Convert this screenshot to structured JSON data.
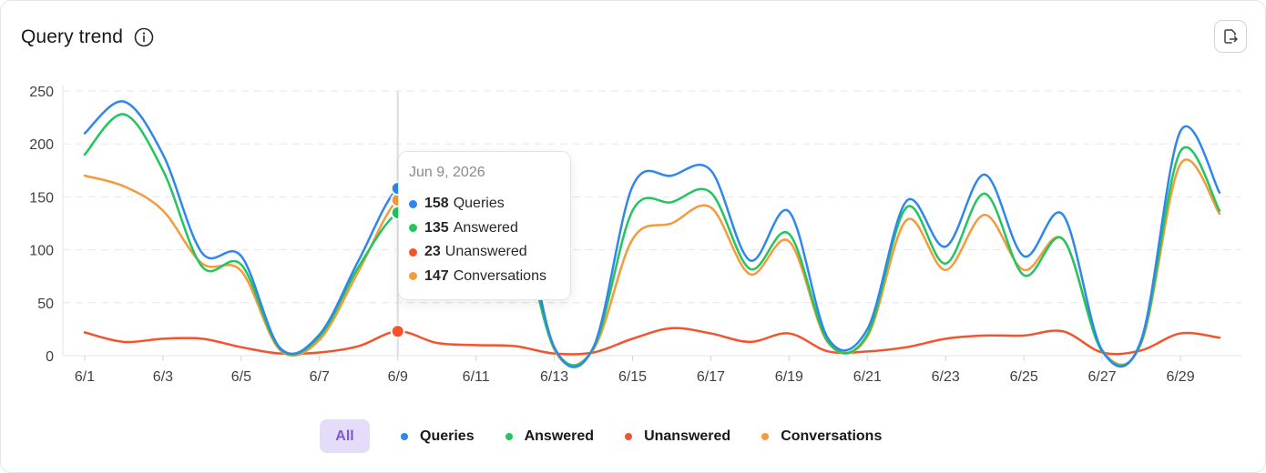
{
  "header": {
    "title": "Query trend"
  },
  "icons": {
    "info": "info-icon",
    "export": "export-icon"
  },
  "colors": {
    "queries": "#2f86eb",
    "answered": "#22c55e",
    "unanswered": "#f4532d",
    "conversations": "#f59a3d",
    "all_bg": "#e4dcf9",
    "all_text": "#7c5ad6"
  },
  "legend": {
    "all_label": "All",
    "items": [
      {
        "key": "queries",
        "label": "Queries"
      },
      {
        "key": "answered",
        "label": "Answered"
      },
      {
        "key": "unanswered",
        "label": "Unanswered"
      },
      {
        "key": "conversations",
        "label": "Conversations"
      }
    ]
  },
  "tooltip": {
    "date": "Jun 9, 2026",
    "rows": [
      {
        "key": "queries",
        "value": "158",
        "label": "Queries"
      },
      {
        "key": "answered",
        "value": "135",
        "label": "Answered"
      },
      {
        "key": "unanswered",
        "value": "23",
        "label": "Unanswered"
      },
      {
        "key": "conversations",
        "value": "147",
        "label": "Conversations"
      }
    ]
  },
  "chart_data": {
    "type": "line",
    "title": "Query trend",
    "x": [
      "6/1",
      "6/2",
      "6/3",
      "6/4",
      "6/5",
      "6/6",
      "6/7",
      "6/8",
      "6/9",
      "6/10",
      "6/11",
      "6/12",
      "6/13",
      "6/14",
      "6/15",
      "6/16",
      "6/17",
      "6/18",
      "6/19",
      "6/20",
      "6/21",
      "6/22",
      "6/23",
      "6/24",
      "6/25",
      "6/26",
      "6/27",
      "6/28",
      "6/29",
      "6/30"
    ],
    "x_tick_labels": [
      "6/1",
      "6/3",
      "6/5",
      "6/7",
      "6/9",
      "6/11",
      "6/13",
      "6/15",
      "6/17",
      "6/19",
      "6/21",
      "6/23",
      "6/25",
      "6/27",
      "6/29"
    ],
    "ylim": [
      0,
      250
    ],
    "y_ticks": [
      0,
      50,
      100,
      150,
      200,
      250
    ],
    "grid": true,
    "legend_position": "bottom-center",
    "highlighted_index": 8,
    "series": [
      {
        "name": "Queries",
        "key": "queries",
        "values": [
          210,
          240,
          190,
          97,
          94,
          7,
          20,
          90,
          158,
          158,
          158,
          158,
          8,
          8,
          160,
          170,
          175,
          90,
          136,
          16,
          25,
          146,
          103,
          171,
          94,
          133,
          5,
          15,
          212,
          154
        ]
      },
      {
        "name": "Answered",
        "key": "answered",
        "values": [
          190,
          228,
          175,
          84,
          86,
          6,
          18,
          84,
          135,
          135,
          135,
          135,
          7,
          7,
          137,
          145,
          154,
          82,
          115,
          13,
          20,
          140,
          87,
          153,
          76,
          110,
          4,
          13,
          193,
          137
        ]
      },
      {
        "name": "Unanswered",
        "key": "unanswered",
        "values": [
          22,
          13,
          16,
          16,
          8,
          2,
          3,
          9,
          23,
          12,
          10,
          9,
          2,
          3,
          16,
          26,
          21,
          13,
          21,
          4,
          4,
          8,
          16,
          19,
          19,
          23,
          3,
          5,
          21,
          17
        ]
      },
      {
        "name": "Conversations",
        "key": "conversations",
        "values": [
          170,
          160,
          137,
          87,
          80,
          5,
          15,
          80,
          147,
          147,
          147,
          147,
          6,
          6,
          110,
          125,
          140,
          77,
          108,
          12,
          18,
          128,
          81,
          133,
          81,
          110,
          5,
          12,
          181,
          134
        ]
      }
    ]
  }
}
